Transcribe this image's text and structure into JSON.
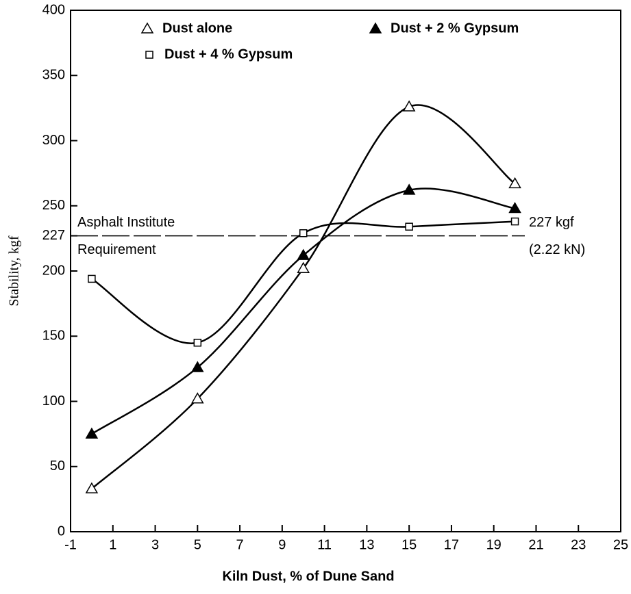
{
  "chart_data": {
    "type": "line",
    "x_label": "Kiln Dust, % of Dune Sand",
    "y_label": "Stability, kgf",
    "x": [
      0,
      5,
      10,
      15,
      20
    ],
    "series": [
      {
        "name": "Dust alone",
        "color": "#000000",
        "marker": "triangle-open",
        "values": [
          33,
          102,
          202,
          326,
          267
        ]
      },
      {
        "name": "Dust + 2 % Gypsum",
        "color": "#000000",
        "marker": "triangle-filled",
        "values": [
          75,
          126,
          212,
          262,
          248
        ]
      },
      {
        "name": "Dust + 4 % Gypsum",
        "color": "#000000",
        "marker": "square-open",
        "values": [
          194,
          145,
          229,
          234,
          238
        ]
      }
    ],
    "xlim": [
      -1,
      25
    ],
    "xticks": [
      -1,
      1,
      3,
      5,
      7,
      9,
      11,
      13,
      15,
      17,
      19,
      21,
      23,
      25
    ],
    "ylim": [
      0,
      400
    ],
    "yticks": [
      0,
      50,
      100,
      150,
      200,
      227,
      250,
      300,
      350,
      400
    ],
    "grid": false,
    "reference_line": {
      "value": 227,
      "labels": [
        "Asphalt Institute",
        "Requirement",
        "227 kgf",
        "(2.22 kN)"
      ]
    }
  }
}
